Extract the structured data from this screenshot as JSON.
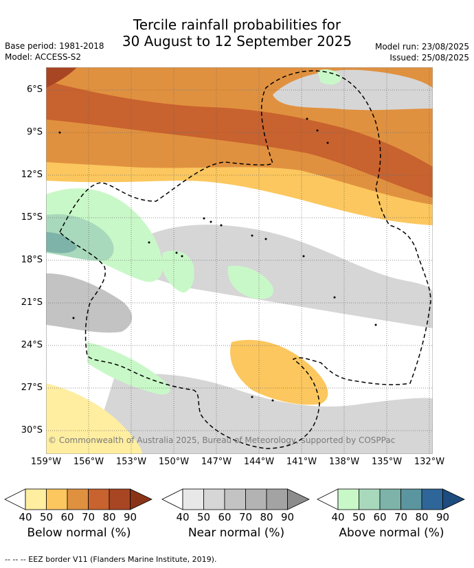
{
  "title_line1": "Tercile rainfall probabilities for",
  "title_line2": "30 August to 12 September 2025",
  "base_period": "Base period: 1981-2018",
  "model": "Model: ACCESS-S2",
  "model_run": "Model run: 23/08/2025",
  "issued": "Issued: 25/08/2025",
  "lat_labels": [
    "6°S",
    "9°S",
    "12°S",
    "15°S",
    "18°S",
    "21°S",
    "24°S",
    "27°S",
    "30°S"
  ],
  "lon_labels": [
    "159°W",
    "156°W",
    "153°W",
    "150°W",
    "147°W",
    "144°W",
    "141°W",
    "138°W",
    "135°W",
    "132°W"
  ],
  "copyright": "© Commonwealth of Australia 2025, Bureau of Meteorology, supported by COSPPac",
  "legends": [
    {
      "title": "Below normal (%)",
      "ticks": [
        "40",
        "50",
        "60",
        "70",
        "80",
        "90"
      ],
      "colors": [
        "#ffeea0",
        "#fcc75e",
        "#e0913f",
        "#c8622e",
        "#a84624",
        "#8a3417"
      ]
    },
    {
      "title": "Near normal (%)",
      "ticks": [
        "40",
        "50",
        "60",
        "70",
        "80",
        "90"
      ],
      "colors": [
        "#e8e8e8",
        "#d6d6d6",
        "#c3c3c3",
        "#b3b3b3",
        "#a3a3a3",
        "#8c8c8c"
      ]
    },
    {
      "title": "Above normal (%)",
      "ticks": [
        "40",
        "50",
        "60",
        "70",
        "80",
        "90"
      ],
      "colors": [
        "#c9f8c8",
        "#a9d9bc",
        "#7db3a8",
        "#5b96a0",
        "#2f6699",
        "#1d4c7e"
      ]
    }
  ],
  "footnote": "--  --  -- EEZ border V11 (Flanders Marine Institute, 2019)."
}
